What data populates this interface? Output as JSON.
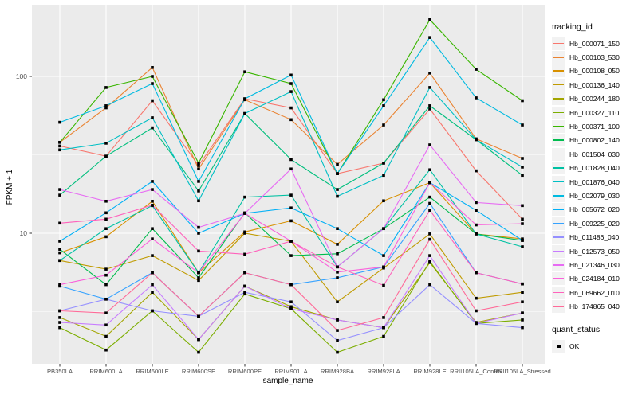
{
  "chart_data": {
    "type": "line",
    "title": "",
    "xlabel": "sample_name",
    "ylabel": "FPKM + 1",
    "y_scale": "log10",
    "y_ticks": [
      10,
      100
    ],
    "y_tick_labels": [
      "10",
      "100"
    ],
    "y_minor_ticks": [
      3.1623,
      31.623
    ],
    "ylim": [
      1.45,
      290
    ],
    "grid": true,
    "panel_color": "#EBEBEB",
    "grid_color": "#FFFFFF",
    "point_shape": "square",
    "point_color": "#000000",
    "categories": [
      "PB350LA",
      "RRIM600LA",
      "RRIM600LE",
      "RRIM600SE",
      "RRIM600PE",
      "RRIM901LA",
      "RRIM928BA",
      "RRIM928LA",
      "RRIM928LE",
      "RRII105LA_Control",
      "RRII105LA_Stressed"
    ],
    "series": [
      {
        "name": "Hb_000071_150",
        "color": "#F8766D",
        "values": [
          36,
          31,
          70,
          27,
          72,
          63,
          24,
          28,
          62,
          25,
          12.3
        ]
      },
      {
        "name": "Hb_000103_530",
        "color": "#EA8331",
        "values": [
          38,
          63,
          114,
          25.7,
          71,
          53,
          27.5,
          49,
          105,
          40,
          30
        ]
      },
      {
        "name": "Hb_000108_050",
        "color": "#D89000",
        "values": [
          7.5,
          9.5,
          16,
          5.6,
          10.2,
          12,
          8.5,
          16.1,
          21,
          9.9,
          9.2
        ]
      },
      {
        "name": "Hb_000136_140",
        "color": "#C09B00",
        "values": [
          6.7,
          5.9,
          7.2,
          5.0,
          10,
          8.9,
          3.65,
          6.0,
          9.9,
          3.85,
          4.2
        ]
      },
      {
        "name": "Hb_000244_180",
        "color": "#A3A500",
        "values": [
          2.9,
          2.2,
          4.2,
          2.1,
          4.6,
          3.4,
          2.8,
          2.5,
          6.5,
          2.7,
          3.1
        ]
      },
      {
        "name": "Hb_000327_110",
        "color": "#7CAE00",
        "values": [
          2.5,
          1.8,
          3.2,
          1.74,
          4.1,
          3.3,
          1.74,
          2.2,
          6.6,
          2.66,
          2.8
        ]
      },
      {
        "name": "Hb_000371_100",
        "color": "#39B600",
        "values": [
          38,
          85,
          100,
          28,
          107,
          90,
          24,
          71,
          230,
          111,
          70
        ]
      },
      {
        "name": "Hb_000802_140",
        "color": "#00BB4E",
        "values": [
          7.9,
          4.7,
          10.7,
          5.2,
          13.5,
          7.2,
          7.4,
          10.7,
          17,
          9.9,
          9.0
        ]
      },
      {
        "name": "Hb_001504_030",
        "color": "#00BF7D",
        "values": [
          17.5,
          31,
          47,
          18.6,
          58,
          29.5,
          19,
          28,
          65,
          39.5,
          23.4
        ]
      },
      {
        "name": "Hb_001828_040",
        "color": "#00C1A3",
        "values": [
          6.7,
          10.7,
          15,
          5.6,
          17,
          17.5,
          6.1,
          10.7,
          25.4,
          9.9,
          8.2
        ]
      },
      {
        "name": "Hb_001876_040",
        "color": "#00BFC4",
        "values": [
          34,
          37.5,
          54.5,
          16.1,
          58,
          80,
          17.2,
          23.4,
          85,
          39.5,
          26.4
        ]
      },
      {
        "name": "Hb_002079_030",
        "color": "#00BAE0",
        "values": [
          51,
          65,
          90,
          21.4,
          72,
          102,
          24,
          65,
          177,
          73,
          49
        ]
      },
      {
        "name": "Hb_005672_020",
        "color": "#00B0F6",
        "values": [
          8.9,
          13.5,
          21.4,
          10,
          13.4,
          14.5,
          10.7,
          7.2,
          21,
          14,
          9.0
        ]
      },
      {
        "name": "Hb_009225_020",
        "color": "#35A2FF",
        "values": [
          4.6,
          3.8,
          5.6,
          2.95,
          5.6,
          4.7,
          5.2,
          6.1,
          15.5,
          5.6,
          4.75
        ]
      },
      {
        "name": "Hb_011486_040",
        "color": "#9590FF",
        "values": [
          3.2,
          3.8,
          3.2,
          2.95,
          4.2,
          3.65,
          2.07,
          2.5,
          4.7,
          2.66,
          2.5
        ]
      },
      {
        "name": "Hb_012573_050",
        "color": "#C77CFF",
        "values": [
          2.7,
          2.6,
          4.7,
          2.1,
          4.6,
          3.3,
          2.8,
          2.5,
          7.2,
          2.66,
          3.1
        ]
      },
      {
        "name": "Hb_021346_030",
        "color": "#E76BF3",
        "values": [
          19,
          16,
          19,
          10.9,
          13.4,
          25.7,
          6.1,
          10.7,
          36.6,
          15.7,
          15
        ]
      },
      {
        "name": "Hb_024184_010",
        "color": "#FA62DB",
        "values": [
          4.7,
          5.4,
          9.2,
          5.6,
          13.4,
          8.9,
          5.65,
          6.1,
          21,
          11.3,
          11.5
        ]
      },
      {
        "name": "Hb_069662_010",
        "color": "#FF62BC",
        "values": [
          11.6,
          12.3,
          15.1,
          7.7,
          7.35,
          8.9,
          6.1,
          4.65,
          14,
          5.6,
          4.75
        ]
      },
      {
        "name": "Hb_174865_040",
        "color": "#FF6A98",
        "values": [
          3.2,
          3.1,
          5.6,
          2.95,
          5.6,
          4.7,
          2.4,
          2.9,
          9.15,
          3.2,
          3.65
        ]
      }
    ],
    "legend": {
      "position": "right",
      "color_title": "tracking_id",
      "shape_title": "quant_status",
      "shape_items": [
        {
          "label": "OK"
        }
      ]
    }
  },
  "axis": {
    "tick_label_color": "#4D4D4D"
  }
}
